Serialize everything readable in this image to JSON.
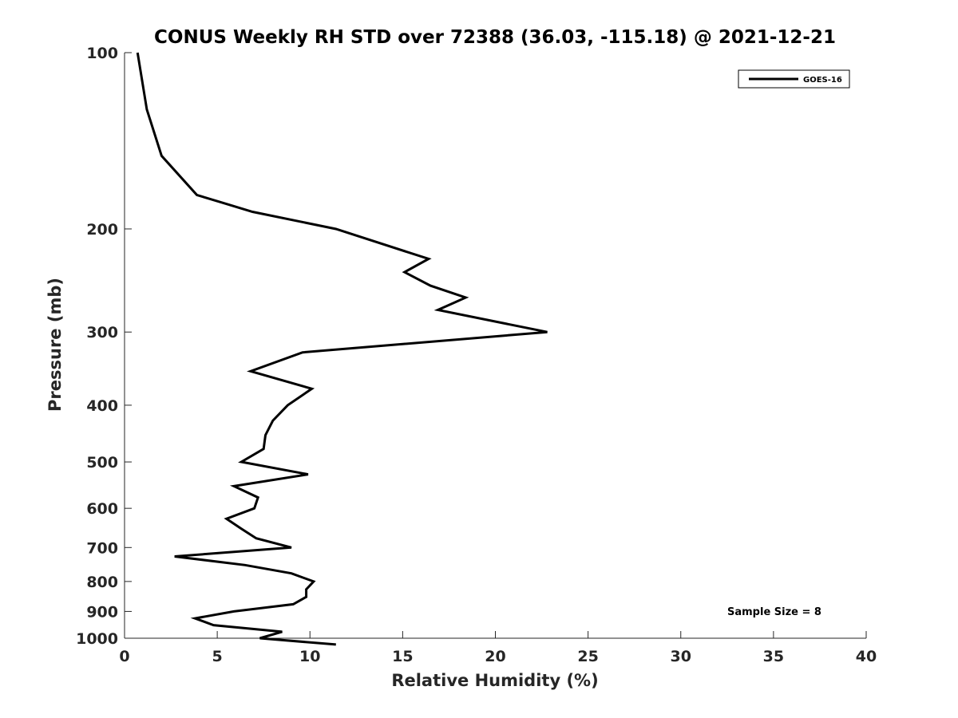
{
  "chart_data": {
    "type": "line",
    "title": "CONUS Weekly RH STD over 72388 (36.03, -115.18) @ 2021-12-21",
    "xlabel": "Relative Humidity (%)",
    "ylabel": "Pressure (mb)",
    "xlim": [
      0,
      40
    ],
    "ylim": [
      100,
      1000
    ],
    "y_scale": "log",
    "y_reversed": true,
    "x_ticks": [
      "0",
      "5",
      "10",
      "15",
      "20",
      "25",
      "30",
      "35",
      "40"
    ],
    "y_ticks": [
      "100",
      "200",
      "300",
      "400",
      "500",
      "600",
      "700",
      "800",
      "900",
      "1000"
    ],
    "grid": false,
    "legend_position": "top-right",
    "annotation": "Sample Size = 8",
    "series": [
      {
        "name": "GOES-16",
        "color": "#000000",
        "x": [
          0.7,
          1.2,
          2.0,
          3.9,
          6.9,
          11.4,
          16.4,
          15.1,
          16.5,
          18.4,
          16.9,
          22.8,
          9.6,
          6.8,
          10.1,
          8.8,
          8.0,
          7.6,
          7.5,
          6.3,
          9.9,
          5.9,
          7.2,
          7.0,
          5.5,
          6.3,
          7.1,
          9.0,
          2.7,
          6.5,
          9.0,
          10.2,
          9.8,
          9.8,
          9.1,
          5.9,
          3.8,
          4.8,
          8.5,
          7.3,
          11.4
        ],
        "y": [
          100,
          125,
          150,
          175,
          187,
          200,
          225,
          237,
          250,
          262,
          275,
          300,
          325,
          350,
          375,
          400,
          425,
          450,
          475,
          500,
          525,
          550,
          575,
          600,
          625,
          650,
          675,
          700,
          725,
          750,
          775,
          800,
          825,
          850,
          875,
          900,
          925,
          950,
          975,
          1000,
          1025
        ]
      }
    ]
  }
}
